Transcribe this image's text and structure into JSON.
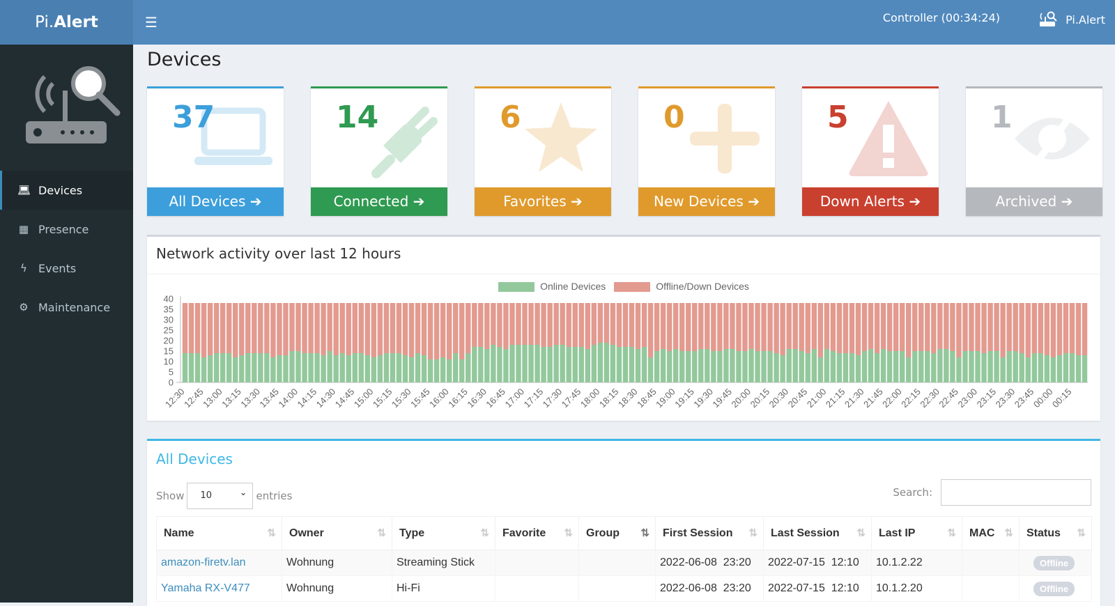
{
  "app": {
    "logo_light": "Pi.",
    "logo_bold": "Alert",
    "controller": "Controller (00:34:24)",
    "brand": "Pi.Alert"
  },
  "sidebar": {
    "items": [
      {
        "label": "Devices",
        "icon": "laptop-icon",
        "active": true
      },
      {
        "label": "Presence",
        "icon": "calendar-icon"
      },
      {
        "label": "Events",
        "icon": "bolt-icon"
      },
      {
        "label": "Maintenance",
        "icon": "gear-icon"
      }
    ]
  },
  "page": {
    "title": "Devices"
  },
  "cards": [
    {
      "count": "37",
      "label": "All Devices",
      "color": "#3c9fdb",
      "icon": "laptop-icon"
    },
    {
      "count": "14",
      "label": "Connected",
      "color": "#2f9a51",
      "icon": "plug-icon"
    },
    {
      "count": "6",
      "label": "Favorites",
      "color": "#e09a2c",
      "icon": "star-icon"
    },
    {
      "count": "0",
      "label": "New Devices",
      "color": "#e09a2c",
      "icon": "plus-icon"
    },
    {
      "count": "5",
      "label": "Down Alerts",
      "color": "#c9402f",
      "icon": "warning-icon"
    },
    {
      "count": "1",
      "label": "Archived",
      "color": "#b5b8bd",
      "icon": "eye-slash-icon"
    }
  ],
  "chart": {
    "title": "Network activity over last 12 hours"
  },
  "chart_data": {
    "type": "bar",
    "stacked": true,
    "ylim": [
      0,
      40
    ],
    "yticks": [
      0,
      5,
      10,
      15,
      20,
      25,
      30,
      35,
      40
    ],
    "interval_minutes": 5,
    "tick_labels": [
      "12:30",
      "12:45",
      "13:00",
      "13:15",
      "13:30",
      "13:45",
      "14:00",
      "14:15",
      "14:30",
      "14:45",
      "15:00",
      "15:15",
      "15:30",
      "15:45",
      "16:00",
      "16:15",
      "16:30",
      "16:45",
      "17:00",
      "17:15",
      "17:30",
      "17:45",
      "18:00",
      "18:15",
      "18:30",
      "18:45",
      "19:00",
      "19:15",
      "19:30",
      "19:45",
      "20:00",
      "20:15",
      "20:30",
      "20:45",
      "21:00",
      "21:15",
      "21:30",
      "21:45",
      "22:00",
      "22:15",
      "22:30",
      "22:45",
      "23:00",
      "23:15",
      "23:30",
      "23:45",
      "00:00",
      "00:15"
    ],
    "legend_position": "top",
    "series": [
      {
        "name": "Online Devices",
        "color": "#93c89c",
        "values": [
          14,
          14,
          14,
          12,
          13,
          14,
          14,
          14,
          12,
          13,
          14,
          14,
          14,
          14,
          12,
          13,
          13,
          15,
          15,
          14,
          14,
          14,
          13,
          15,
          13,
          14,
          13,
          14,
          14,
          13,
          12,
          13,
          14,
          14,
          14,
          13,
          12,
          14,
          13,
          11,
          11,
          12,
          11,
          14,
          11,
          14,
          17,
          17,
          16,
          18,
          17,
          16,
          18,
          18,
          18,
          18,
          18,
          17,
          17,
          18,
          18,
          17,
          17,
          17,
          16,
          18,
          19,
          19,
          18,
          17,
          17,
          17,
          16,
          17,
          12,
          15,
          16,
          15,
          16,
          15,
          15,
          15,
          16,
          16,
          15,
          15,
          16,
          16,
          15,
          15,
          16,
          15,
          15,
          15,
          14,
          13,
          16,
          16,
          15,
          14,
          16,
          12,
          16,
          15,
          14,
          14,
          14,
          13,
          15,
          16,
          14,
          16,
          15,
          15,
          15,
          12,
          15,
          15,
          15,
          14,
          16,
          16,
          15,
          12,
          15,
          15,
          15,
          14,
          15,
          15,
          12,
          15,
          15,
          14,
          12,
          14,
          14,
          13,
          12,
          13,
          14,
          14,
          13,
          13
        ]
      },
      {
        "name": "Offline/Down Devices",
        "color": "#e39a8f",
        "values": [
          24,
          24,
          24,
          26,
          25,
          24,
          24,
          24,
          26,
          25,
          24,
          24,
          24,
          24,
          26,
          25,
          25,
          23,
          23,
          24,
          24,
          24,
          25,
          23,
          25,
          24,
          25,
          24,
          24,
          25,
          26,
          25,
          24,
          24,
          24,
          25,
          26,
          24,
          25,
          27,
          27,
          26,
          27,
          24,
          27,
          24,
          21,
          21,
          22,
          20,
          21,
          22,
          20,
          20,
          20,
          20,
          20,
          21,
          21,
          20,
          20,
          21,
          21,
          21,
          22,
          20,
          19,
          19,
          20,
          21,
          21,
          21,
          22,
          21,
          26,
          23,
          22,
          23,
          22,
          23,
          23,
          23,
          22,
          22,
          23,
          23,
          22,
          22,
          23,
          23,
          22,
          23,
          23,
          23,
          24,
          25,
          22,
          22,
          23,
          24,
          22,
          26,
          22,
          23,
          24,
          24,
          24,
          25,
          23,
          22,
          24,
          22,
          23,
          23,
          23,
          26,
          23,
          23,
          23,
          24,
          22,
          22,
          23,
          26,
          23,
          23,
          23,
          24,
          23,
          23,
          26,
          23,
          23,
          24,
          26,
          24,
          24,
          25,
          26,
          25,
          24,
          24,
          25,
          25
        ]
      }
    ]
  },
  "table": {
    "title": "All Devices",
    "show_label": "Show",
    "entries_value": "10",
    "entries_label": "entries",
    "search_label": "Search:",
    "search_value": "",
    "columns": [
      "Name",
      "Owner",
      "Type",
      "Favorite",
      "Group",
      "First Session",
      "Last Session",
      "Last IP",
      "MAC",
      "Status"
    ],
    "rows": [
      {
        "name": "amazon-firetv.lan",
        "owner": "Wohnung",
        "type": "Streaming Stick",
        "favorite": "",
        "group": "",
        "first": "2022-06-08  23:20",
        "last": "2022-07-15  12:10",
        "ip": "10.1.2.22",
        "mac": "",
        "status": "Offline"
      },
      {
        "name": "Yamaha RX-V477",
        "owner": "Wohnung",
        "type": "Hi-Fi",
        "favorite": "",
        "group": "",
        "first": "2022-06-08  23:20",
        "last": "2022-07-15  12:10",
        "ip": "10.1.2.20",
        "mac": "",
        "status": "Offline"
      }
    ]
  }
}
